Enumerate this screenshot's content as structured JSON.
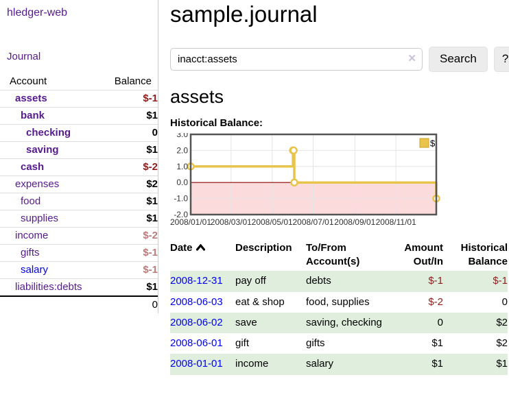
{
  "app": {
    "brand": "hledger-web",
    "nav": {
      "journal": "Journal"
    }
  },
  "sidebar": {
    "headers": {
      "account": "Account",
      "balance": "Balance"
    },
    "accounts": [
      {
        "name": "assets",
        "balance": "$-1"
      },
      {
        "name": "bank",
        "balance": "$1"
      },
      {
        "name": "checking",
        "balance": "0"
      },
      {
        "name": "saving",
        "balance": "$1"
      },
      {
        "name": "cash",
        "balance": "$-2"
      },
      {
        "name": "expenses",
        "balance": "$2"
      },
      {
        "name": "food",
        "balance": "$1"
      },
      {
        "name": "supplies",
        "balance": "$1"
      },
      {
        "name": "income",
        "balance": "$-2"
      },
      {
        "name": "gifts",
        "balance": "$-1"
      },
      {
        "name": "salary",
        "balance": "$-1"
      },
      {
        "name": "liabilities:debts",
        "balance": "$1"
      }
    ],
    "total": "0"
  },
  "header": {
    "title": "sample.journal"
  },
  "search": {
    "value": "inacct:assets",
    "clear_icon": "✕",
    "button_label": "Search",
    "help_label": "?"
  },
  "register": {
    "heading": "assets",
    "section_label": "Historical Balance:",
    "table": {
      "headers": {
        "date": "Date",
        "description": "Description",
        "accounts": "To/From Account(s)",
        "amount": "Amount Out/In",
        "balance": "Historical Balance"
      },
      "rows": [
        {
          "date": "2008-12-31",
          "description": "pay off",
          "accounts": "debts",
          "amount": "$-1",
          "balance": "$-1"
        },
        {
          "date": "2008-06-03",
          "description": "eat & shop",
          "accounts": "food, supplies",
          "amount": "$-2",
          "balance": "0"
        },
        {
          "date": "2008-06-02",
          "description": "save",
          "accounts": "saving, checking",
          "amount": "0",
          "balance": "$2"
        },
        {
          "date": "2008-06-01",
          "description": "gift",
          "accounts": "gifts",
          "amount": "$1",
          "balance": "$2"
        },
        {
          "date": "2008-01-01",
          "description": "income",
          "accounts": "salary",
          "amount": "$1",
          "balance": "$1"
        }
      ]
    }
  },
  "chart_data": {
    "type": "line",
    "title": "Historical Balance of assets",
    "step": true,
    "series": [
      {
        "name": "$",
        "x": [
          "2008-01-01",
          "2008-06-01",
          "2008-06-02",
          "2008-06-03",
          "2008-12-31"
        ],
        "values": [
          1,
          2,
          2,
          0,
          -1
        ]
      }
    ],
    "legend": [
      {
        "label": "$",
        "color": "#e9c44c"
      }
    ],
    "legend_position": "top-right",
    "xrange": [
      "2008-01-01",
      "2008-12-31"
    ],
    "ylim": [
      -2.0,
      3.0
    ],
    "yticks": [
      3.0,
      2.0,
      1.0,
      0.0,
      -1.0,
      -2.0
    ],
    "xticks": [
      "2008/01/01",
      "2008/03/01",
      "2008/05/01",
      "2008/07/01",
      "2008/09/01",
      "2008/11/01"
    ],
    "grid": true,
    "colors": {
      "line": "#e9c44c",
      "marker_fill": "#ffffff",
      "legend_border": "#c9a227",
      "negative_region_fill": "#fbdbdb",
      "zero_line": "#8b0000",
      "gridline": "#e4e4e4",
      "plot_border": "#545454",
      "tick_text": "#333333"
    }
  }
}
